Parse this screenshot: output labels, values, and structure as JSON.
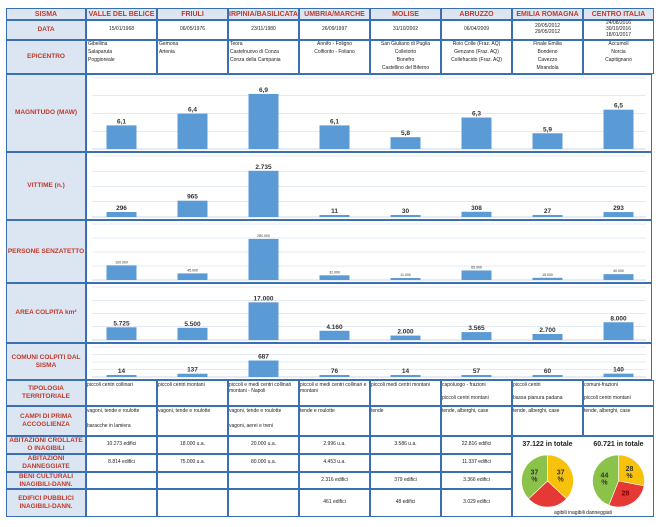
{
  "headers": {
    "sisma": "SISMA",
    "data": "DATA",
    "epicentro": "EPICENTRO"
  },
  "events": [
    {
      "name": "VALLE DEL BELICE",
      "date": [
        "15/01/1968"
      ],
      "epi": [
        "Gibellina",
        "Salaparuta",
        "Poggioreale"
      ]
    },
    {
      "name": "FRIULI",
      "date": [
        "06/05/1976"
      ],
      "epi": [
        "Gemona",
        "Artenia"
      ]
    },
    {
      "name": "IRPINIA/BASILICATA",
      "date": [
        "23/11/1980"
      ],
      "epi": [
        "Teora",
        "Castelnuovo di Conza",
        "Conza della Campania"
      ]
    },
    {
      "name": "UMBRIA/MARCHE",
      "date": [
        "26/09/1997"
      ],
      "epi": [
        "Annifo - Foligno",
        "Colfiorito - Foliano"
      ]
    },
    {
      "name": "MOLISE",
      "date": [
        "31/10/2002"
      ],
      "epi": [
        "San Giuliano di Puglia",
        "Colletorto",
        "Bonefro",
        "Castellino del Biferno"
      ]
    },
    {
      "name": "ABRUZZO",
      "date": [
        "06/04/2009"
      ],
      "epi": [
        "Roio Colle (Fraz. AQ)",
        "Genzano (Fraz. AQ)",
        "Collefracido (Fraz. AQ)"
      ]
    },
    {
      "name": "EMILIA ROMAGNA",
      "date": [
        "20/05/2012",
        "29/05/2012"
      ],
      "epi": [
        "Finale Emilia",
        "Bondeno",
        "Cavezzo",
        "Mirandola"
      ]
    },
    {
      "name": "CENTRO ITALIA",
      "date": [
        "24/08/2016",
        "30/10/2016",
        "18/01/2017"
      ],
      "epi": [
        "Accumoli",
        "Norcia",
        "Capitignano"
      ]
    }
  ],
  "chart_data": [
    {
      "type": "bar",
      "label": "MAGNITUDO (MAW)",
      "values": [
        6.1,
        6.4,
        6.9,
        6.1,
        5.8,
        6.3,
        5.9,
        6.5
      ],
      "display": [
        "6,1",
        "6,4",
        "6,9",
        "6,1",
        "5,8",
        "6,3",
        "5,9",
        "6,5"
      ],
      "ylim": [
        5.5,
        7.0
      ]
    },
    {
      "type": "bar",
      "label": "VITTIME (n.)",
      "values": [
        296,
        965,
        2735,
        11,
        30,
        308,
        27,
        293
      ],
      "display": [
        "296",
        "965",
        "2.735",
        "11",
        "30",
        "308",
        "27",
        "293"
      ],
      "ylim": [
        0,
        2900
      ]
    },
    {
      "type": "bar",
      "label": "PERSONE SENZATETTO",
      "values": [
        100000,
        45000,
        280000,
        32000,
        11000,
        65000,
        15000,
        40000
      ],
      "display": [
        "100.000",
        "45.000",
        "280.000",
        "32.000",
        "11.000",
        "65.000",
        "15.000",
        "40.000"
      ],
      "ylim": [
        0,
        300000
      ]
    },
    {
      "type": "bar",
      "label": "AREA COLPITA km²",
      "values": [
        5725,
        5500,
        17000,
        4160,
        2000,
        3565,
        2700,
        8000
      ],
      "display": [
        "5.725",
        "5.500",
        "17.000",
        "4.160",
        "2.000",
        "3.565",
        "2.700",
        "8.000"
      ],
      "ylim": [
        0,
        18500
      ]
    },
    {
      "type": "bar",
      "label": "COMUNI COLPITI DAL SISMA",
      "values": [
        14,
        137,
        687,
        76,
        14,
        57,
        60,
        140
      ],
      "display": [
        "14",
        "137",
        "687",
        "76",
        "14",
        "57",
        "60",
        "140"
      ],
      "ylim": [
        0,
        750
      ]
    },
    {
      "type": "pie",
      "title": "37.122 in totale",
      "values": [
        37,
        26,
        37
      ],
      "display": [
        "37\n%",
        "",
        "37\n%"
      ],
      "colors": [
        "#f7c20b",
        "#e53935",
        "#8bc34a"
      ]
    },
    {
      "type": "pie",
      "title": "60.721 in totale",
      "values": [
        28,
        28,
        44
      ],
      "display": [
        "28\n%",
        "28",
        "44\n%"
      ],
      "colors": [
        "#f7c20b",
        "#e53935",
        "#8bc34a"
      ]
    }
  ],
  "rows": {
    "tipologia": {
      "label": "TIPOLOGIA TERRITORIALE",
      "cells": [
        [
          "piccoli centri collinari"
        ],
        [
          "piccoli centri montani"
        ],
        [
          "piccoli e medi centri collinari montani - Napoli"
        ],
        [
          "piccoli e medi centri collinari e montani"
        ],
        [
          "piccoli medi centri montani"
        ],
        [
          "capoluogo - frazioni",
          "piccoli centri montani"
        ],
        [
          "piccoli centri",
          "bassa pianura padana"
        ],
        [
          "comuni-frazioni",
          "piccoli centri montani"
        ]
      ]
    },
    "campi": {
      "label": "CAMPI DI PRIMA ACCOGLIENZA",
      "cells": [
        [
          "vagoni, tende e roulotte",
          "baracche in lamiera"
        ],
        [
          "vagoni, tende e roulotte"
        ],
        [
          "vagoni, tende e roulotte",
          "vagoni, aerei e treni"
        ],
        [
          "tende e roulotte"
        ],
        [
          "tende"
        ],
        [
          "tende, alberghi, case"
        ],
        [
          "tende, alberghi, case"
        ],
        [
          "tende, alberghi, case"
        ]
      ]
    },
    "crollate": {
      "label": "ABITAZIONI CROLLATE O INAGIBILI",
      "cells": [
        "10.273 edifici",
        "18.000 u.a.",
        "20.000 u.a.",
        "2.996 u.a.",
        "3.586 u.a.",
        "22.816 edifici"
      ]
    },
    "danneggiate": {
      "label": "ABITAZIONI DANNEGGIATE",
      "cells": [
        "8.814 edifici",
        "75.000 u.a.",
        "80.000 u.a.",
        "4.453 u.a.",
        "",
        "11.337 edifici"
      ]
    },
    "beni": {
      "label": "BENI CULTURALI INAGIBILI-DANN.",
      "cells": [
        "",
        "",
        "",
        "2.316 edifici",
        "379 edifici",
        "3.366 edifici"
      ]
    },
    "edifici": {
      "label": "EDIFICI PUBBLICI INAGIBILI-DANN.",
      "cells": [
        "",
        "",
        "",
        "461 edifici",
        "48 edifici",
        "3.029 edifici"
      ]
    }
  },
  "legend": "agibili  inagibili  danneggiati",
  "colors": {
    "bar": "#5b9bd5",
    "header_bg": "#dce6f2",
    "header_text": "#c0392b",
    "grid": "#3a6fb4"
  }
}
